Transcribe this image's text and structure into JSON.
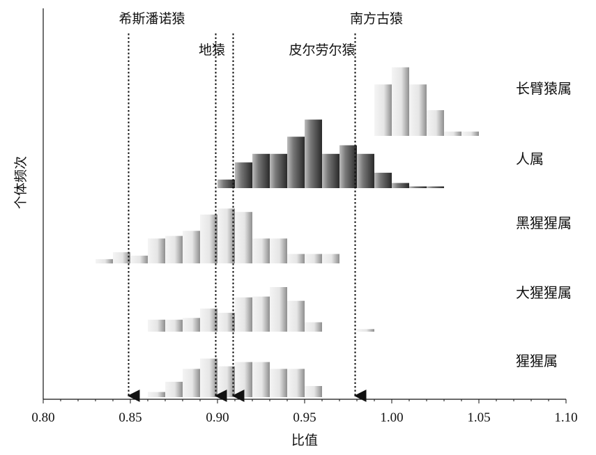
{
  "chart_data": {
    "type": "histogram-ridge",
    "xlabel": "比值",
    "ylabel": "个体频次",
    "xlim": [
      0.8,
      1.1
    ],
    "xticks": [
      "0.80",
      "0.85",
      "0.90",
      "0.95",
      "1.00",
      "1.05",
      "1.10"
    ],
    "bin_width": 0.01,
    "series": [
      {
        "name": "长臂猿属",
        "shade": "light",
        "bins": [
          [
            0.995,
            6
          ],
          [
            1.005,
            8
          ],
          [
            1.015,
            6
          ],
          [
            1.025,
            3
          ],
          [
            1.035,
            0.5
          ],
          [
            1.045,
            0.5
          ]
        ]
      },
      {
        "name": "人属",
        "shade": "dark",
        "bins": [
          [
            0.905,
            1
          ],
          [
            0.915,
            3
          ],
          [
            0.925,
            4
          ],
          [
            0.935,
            4
          ],
          [
            0.945,
            6
          ],
          [
            0.955,
            8
          ],
          [
            0.965,
            4
          ],
          [
            0.975,
            5
          ],
          [
            0.985,
            4
          ],
          [
            0.995,
            1.8
          ],
          [
            1.005,
            0.6
          ],
          [
            1.015,
            0.2
          ],
          [
            1.025,
            0.2
          ]
        ]
      },
      {
        "name": "黑猩猩属",
        "shade": "light",
        "bins": [
          [
            0.835,
            0.5
          ],
          [
            0.845,
            1.3
          ],
          [
            0.855,
            0.9
          ],
          [
            0.865,
            2.9
          ],
          [
            0.875,
            3.2
          ],
          [
            0.885,
            3.8
          ],
          [
            0.895,
            5.7
          ],
          [
            0.905,
            6.4
          ],
          [
            0.915,
            6
          ],
          [
            0.925,
            2.9
          ],
          [
            0.935,
            2.9
          ],
          [
            0.945,
            1.1
          ],
          [
            0.955,
            1.1
          ],
          [
            0.965,
            1.1
          ]
        ]
      },
      {
        "name": "大猩猩属",
        "shade": "light",
        "bins": [
          [
            0.865,
            1.4
          ],
          [
            0.875,
            1.4
          ],
          [
            0.885,
            1.6
          ],
          [
            0.895,
            2.7
          ],
          [
            0.905,
            2.2
          ],
          [
            0.915,
            4
          ],
          [
            0.925,
            4.1
          ],
          [
            0.935,
            5.2
          ],
          [
            0.945,
            3.6
          ],
          [
            0.955,
            1.1
          ],
          [
            0.985,
            0.3
          ]
        ]
      },
      {
        "name": "猩猩属",
        "shade": "light",
        "bins": [
          [
            0.865,
            0.6
          ],
          [
            0.875,
            1.8
          ],
          [
            0.885,
            3.3
          ],
          [
            0.895,
            4.5
          ],
          [
            0.905,
            3.6
          ],
          [
            0.915,
            4.1
          ],
          [
            0.925,
            4.1
          ],
          [
            0.935,
            3.3
          ],
          [
            0.945,
            3.3
          ],
          [
            0.955,
            1.3
          ]
        ]
      }
    ],
    "reference_lines": [
      {
        "label": "希斯潘诺猿",
        "x": 0.849
      },
      {
        "label": "地猿",
        "x": 0.899
      },
      {
        "label": "皮尔劳尔猿",
        "x": 0.909
      },
      {
        "label": "南方古猿",
        "x": 0.979
      }
    ]
  }
}
